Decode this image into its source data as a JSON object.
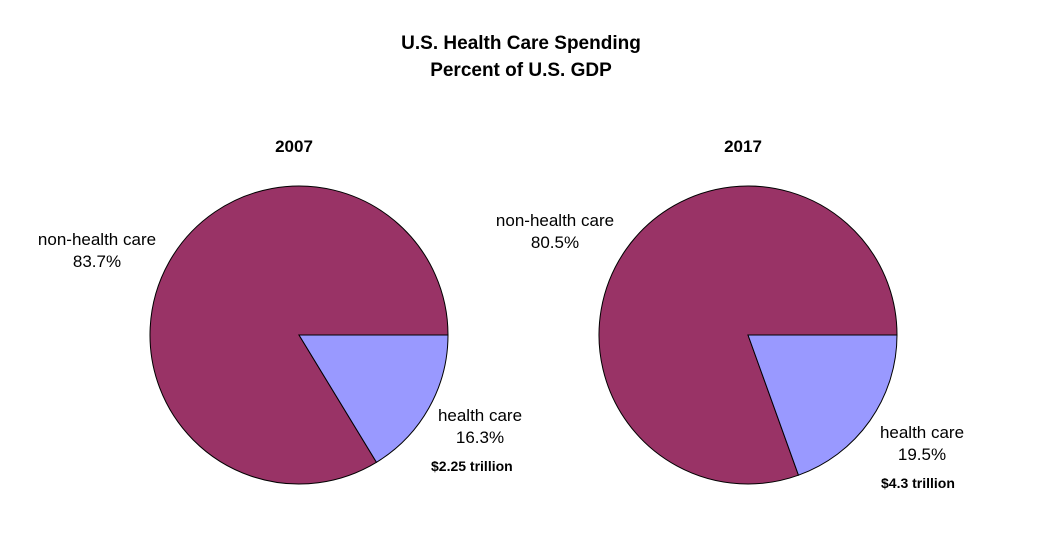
{
  "title": "U.S. Health Care Spending",
  "subtitle": "Percent of U.S. GDP",
  "colors": {
    "non_health": "#993366",
    "health": "#9999ff",
    "stroke": "#000000"
  },
  "chart_data": [
    {
      "type": "pie",
      "title": "2007",
      "slices": [
        {
          "label": "non-health care",
          "percent_label": "83.7%",
          "value": 83.7
        },
        {
          "label": "health care",
          "percent_label": "16.3%",
          "value": 16.3,
          "note": "$2.25 trillion"
        }
      ]
    },
    {
      "type": "pie",
      "title": "2017",
      "slices": [
        {
          "label": "non-health care",
          "percent_label": "80.5%",
          "value": 80.5
        },
        {
          "label": "health care",
          "percent_label": "19.5%",
          "value": 19.5,
          "note": "$4.3 trillion"
        }
      ]
    }
  ]
}
